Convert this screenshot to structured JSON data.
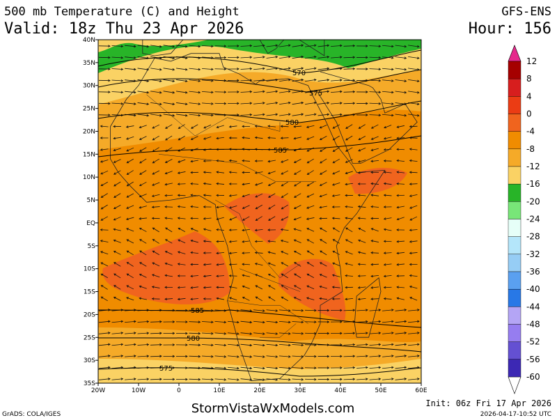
{
  "header": {
    "title": "500 mb Temperature (C) and Height",
    "valid": "Valid: 18z Thu 23 Apr 2026",
    "model": "GFS-ENS",
    "hour": "Hour: 156"
  },
  "map": {
    "lat_labels": [
      "40N",
      "35N",
      "30N",
      "25N",
      "20N",
      "15N",
      "10N",
      "5N",
      "EQ",
      "5S",
      "10S",
      "15S",
      "20S",
      "25S",
      "30S",
      "35S"
    ],
    "lon_labels": [
      "20W",
      "10W",
      "0",
      "10E",
      "20E",
      "30E",
      "40E",
      "50E",
      "60E"
    ],
    "contour_labels": [
      "570",
      "575",
      "580",
      "585",
      "585",
      "580",
      "575"
    ]
  },
  "colorbar": {
    "labels": [
      12,
      8,
      4,
      0,
      -4,
      -8,
      -12,
      -16,
      -20,
      -24,
      -28,
      -32,
      -36,
      -40,
      -44,
      -48,
      -52,
      -56,
      -60
    ],
    "colors": [
      "#a50000",
      "#d71e1e",
      "#eb3c14",
      "#f0641e",
      "#f08c00",
      "#f5aa28",
      "#fad264",
      "#28b428",
      "#78e678",
      "#e6fff8",
      "#b4e6fa",
      "#96cdf5",
      "#5aa0f0",
      "#2878e6",
      "#b4a5f5",
      "#967df0",
      "#6450d2",
      "#3c28b4"
    ],
    "top_color": "#e6288c",
    "bottom_color": "#ffffff"
  },
  "footer": {
    "grads": "GrADS: COLA/IGES",
    "site": "StormVistaWxModels.com",
    "init": "Init: 06z Fri 17 Apr 2026",
    "stamp": "2026-04-17-10:52 UTC"
  }
}
